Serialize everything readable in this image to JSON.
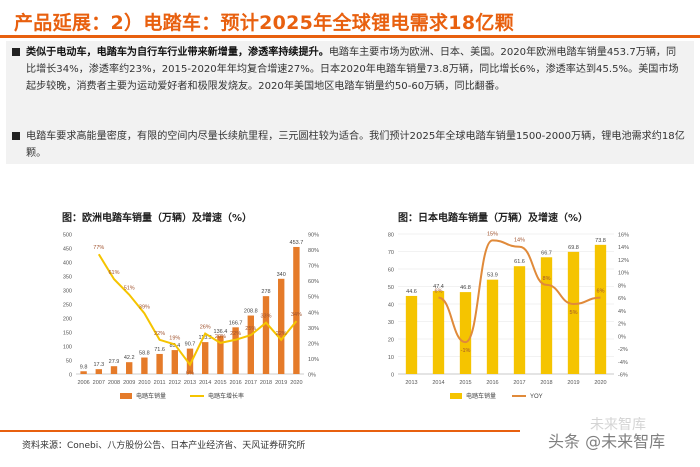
{
  "header": {
    "title": "产品延展：2）电踏车：预计2025年全球锂电需求18亿颗"
  },
  "bullets": [
    {
      "bold": "类似于电动车，电踏车为自行车行业带来新增量，渗透率持续提升。",
      "text": "电踏车主要市场为欧洲、日本、美国。2020年欧洲电踏车销量453.7万辆，同比增长34%，渗透率约23%，2015-2020年年均复合增速27%。日本2020年电踏车销量73.8万辆，同比增长6%，渗透率达到45.5%。美国市场起步较晚，消费者主要为运动爱好者和极限发烧友。2020年美国地区电踏车销量约50-60万辆，同比翻番。"
    },
    {
      "bold": "",
      "text": "电踏车要求高能量密度，有限的空间内尽量长续航里程，三元圆柱较为适合。我们预计2025年全球电踏车销量1500-2000万辆，锂电池需求约18亿颗。"
    }
  ],
  "footer": {
    "source": "资料来源：Conebi、八方股份公告、日本产业经济省、天风证券研究所",
    "watermark": "头条 @未来智库",
    "watermark_ghost": "未来智库"
  },
  "colors": {
    "accent": "#e8600f",
    "bar": "#e57b2a",
    "line": "#f5c400",
    "bar_japan": "#f5c400",
    "line_japan": "#e08a3a"
  },
  "chart_data": [
    {
      "type": "bar",
      "title": "图：欧洲电踏车销量（万辆）及增速（%）",
      "categories": [
        "2006",
        "2007",
        "2008",
        "2009",
        "2010",
        "2011",
        "2012",
        "2013",
        "2014",
        "2015",
        "2016",
        "2017",
        "2018",
        "2019",
        "2020"
      ],
      "series": [
        {
          "name": "电踏车销量",
          "axis": "left",
          "kind": "bar",
          "values": [
            9.8,
            17.3,
            27.9,
            42.2,
            58.8,
            71.6,
            85.4,
            90.7,
            113.9,
            136.4,
            166.7,
            208.8,
            278,
            340,
            453.7
          ]
        },
        {
          "name": "电踏车增长率",
          "axis": "right",
          "kind": "line",
          "values": [
            null,
            77,
            61,
            51,
            39,
            22,
            19,
            6,
            26,
            20,
            22,
            25,
            33,
            22,
            34
          ]
        }
      ],
      "left_axis": {
        "ylim": [
          0,
          500
        ],
        "ticks": [
          0,
          50,
          100,
          150,
          200,
          250,
          300,
          350,
          400,
          450,
          500
        ]
      },
      "right_axis": {
        "ylim": [
          0,
          90
        ],
        "ticks": [
          "0%",
          "10%",
          "20%",
          "30%",
          "40%",
          "50%",
          "60%",
          "70%",
          "80%",
          "90%"
        ]
      },
      "value_labels": [
        "9.8",
        "17.3",
        "27.9",
        "42.2",
        "58.8",
        "71.6",
        "85.4",
        "90.7",
        "113.9",
        "136.4",
        "166.7",
        "208.8",
        "278",
        "340",
        "453.7"
      ],
      "rate_labels": [
        "",
        "77%",
        "61%",
        "51%",
        "39%",
        "22%",
        "19%",
        "6%",
        "26%",
        "20%",
        "22%",
        "25%",
        "33%",
        "22%",
        "34%"
      ],
      "legend": "bottom"
    },
    {
      "type": "bar",
      "title": "图：日本电踏车销量（万辆）及增速（%）",
      "categories": [
        "2013",
        "2014",
        "2015",
        "2016",
        "2017",
        "2018",
        "2019",
        "2020"
      ],
      "series": [
        {
          "name": "电踏车销量",
          "axis": "left",
          "kind": "bar",
          "values": [
            44.6,
            47.4,
            46.8,
            53.9,
            61.6,
            66.7,
            69.8,
            73.8
          ]
        },
        {
          "name": "YOY",
          "axis": "right",
          "kind": "line",
          "values": [
            null,
            6,
            -1,
            15,
            14,
            8,
            5,
            6
          ]
        }
      ],
      "left_axis": {
        "ylim": [
          0,
          80
        ],
        "ticks": [
          0,
          10,
          20,
          30,
          40,
          50,
          60,
          70,
          80
        ]
      },
      "right_axis": {
        "ylim": [
          -6,
          16
        ],
        "ticks": [
          "-6%",
          "-4%",
          "-2%",
          "0%",
          "2%",
          "4%",
          "6%",
          "8%",
          "10%",
          "12%",
          "14%",
          "16%"
        ]
      },
      "value_labels": [
        "44.6",
        "47.4",
        "46.8",
        "53.9",
        "61.6",
        "66.7",
        "69.8",
        "73.8"
      ],
      "rate_labels": [
        "",
        "6%",
        "-1%",
        "15%",
        "14%",
        "8%",
        "5%",
        "6%"
      ],
      "legend": "bottom"
    }
  ]
}
